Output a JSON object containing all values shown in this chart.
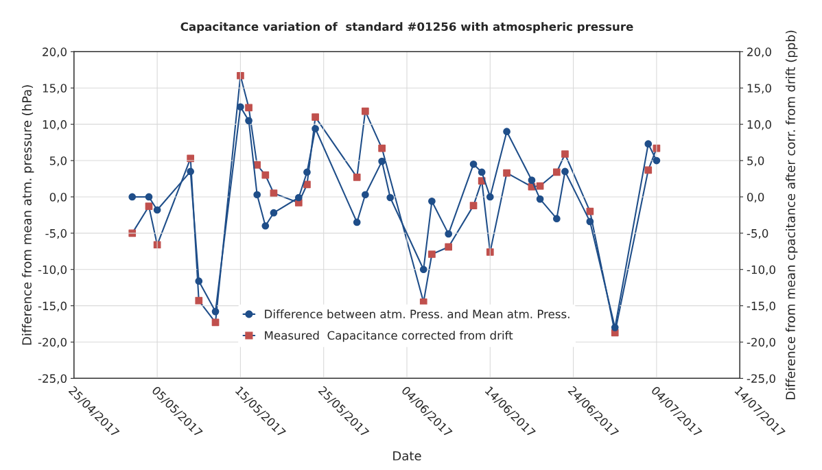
{
  "chart_data": {
    "type": "line",
    "title": "Capacitance variation of  standard #01256 with atmospheric pressure",
    "xlabel": "Date",
    "ylabel": "Difference from mean atm. pressure (hPa)",
    "y2label": "Difference from mean cpacitance after corr. from drift (ppb)",
    "x": [
      "2017-05-02",
      "2017-05-04",
      "2017-05-05",
      "2017-05-09",
      "2017-05-10",
      "2017-05-12",
      "2017-05-15",
      "2017-05-16",
      "2017-05-17",
      "2017-05-18",
      "2017-05-19",
      "2017-05-22",
      "2017-05-23",
      "2017-05-24",
      "2017-05-29",
      "2017-05-30",
      "2017-06-01",
      "2017-06-02",
      "2017-06-06",
      "2017-06-07",
      "2017-06-09",
      "2017-06-12",
      "2017-06-13",
      "2017-06-14",
      "2017-06-16",
      "2017-06-19",
      "2017-06-20",
      "2017-06-22",
      "2017-06-23",
      "2017-06-26",
      "2017-06-29",
      "2017-07-03",
      "2017-07-04"
    ],
    "series": [
      {
        "name": "Difference between atm. Press. and Mean atm. Press.",
        "color": "#1f4e89",
        "marker": "circle",
        "values": [
          0.0,
          0.0,
          -1.8,
          3.5,
          -11.6,
          -15.8,
          12.4,
          10.5,
          0.3,
          -4.0,
          -2.2,
          -0.1,
          3.4,
          9.4,
          -3.5,
          0.3,
          4.9,
          -0.1,
          -10.0,
          -0.6,
          -5.1,
          4.5,
          3.4,
          0.0,
          9.0,
          2.3,
          -0.3,
          -3.0,
          3.5,
          -3.4,
          -18.0,
          7.3,
          5.0
        ]
      },
      {
        "name": "Measured  Capacitance corrected from drift",
        "color": "#c0504d",
        "marker": "square",
        "axis": "y2",
        "values": [
          -5.0,
          -1.3,
          -6.6,
          5.3,
          -14.3,
          -17.3,
          16.7,
          12.3,
          4.4,
          3.0,
          0.5,
          -0.8,
          1.7,
          11.0,
          2.7,
          11.8,
          6.7,
          null,
          -14.5,
          -7.9,
          -6.9,
          -1.2,
          2.2,
          -7.6,
          3.3,
          1.4,
          1.5,
          3.4,
          5.9,
          -2.0,
          -18.7,
          3.7,
          6.7
        ]
      }
    ],
    "xlim": [
      "2017-04-25",
      "2017-07-14"
    ],
    "xticks": [
      {
        "value": "2017-04-25",
        "label": "25/04/2017"
      },
      {
        "value": "2017-05-05",
        "label": "05/05/2017"
      },
      {
        "value": "2017-05-15",
        "label": "15/05/2017"
      },
      {
        "value": "2017-05-25",
        "label": "25/05/2017"
      },
      {
        "value": "2017-06-04",
        "label": "04/06/2017"
      },
      {
        "value": "2017-06-14",
        "label": "14/06/2017"
      },
      {
        "value": "2017-06-24",
        "label": "24/06/2017"
      },
      {
        "value": "2017-07-04",
        "label": "04/07/2017"
      },
      {
        "value": "2017-07-14",
        "label": "14/07/2017"
      }
    ],
    "ylim": [
      -25,
      20
    ],
    "yticks": [
      {
        "value": -25,
        "label": "-25,0"
      },
      {
        "value": -20,
        "label": "-20,0"
      },
      {
        "value": -15,
        "label": "-15,0"
      },
      {
        "value": -10,
        "label": "-10,0"
      },
      {
        "value": -5,
        "label": "-5,0"
      },
      {
        "value": 0,
        "label": "0,0"
      },
      {
        "value": 5,
        "label": "5,0"
      },
      {
        "value": 10,
        "label": "10,0"
      },
      {
        "value": 15,
        "label": "15,0"
      },
      {
        "value": 20,
        "label": "20,0"
      }
    ],
    "y2lim": [
      -25,
      20
    ],
    "y2ticks": [
      {
        "value": -25,
        "label": "-25,0"
      },
      {
        "value": -20,
        "label": "-20,0"
      },
      {
        "value": -15,
        "label": "-15,0"
      },
      {
        "value": -10,
        "label": "-10,0"
      },
      {
        "value": -5,
        "label": "-5,0"
      },
      {
        "value": 0,
        "label": "0,0"
      },
      {
        "value": 5,
        "label": "5,0"
      },
      {
        "value": 10,
        "label": "10,0"
      },
      {
        "value": 15,
        "label": "15,0"
      },
      {
        "value": 20,
        "label": "20,0"
      }
    ],
    "grid": true,
    "legend": "bottom",
    "line_style": "solid"
  }
}
